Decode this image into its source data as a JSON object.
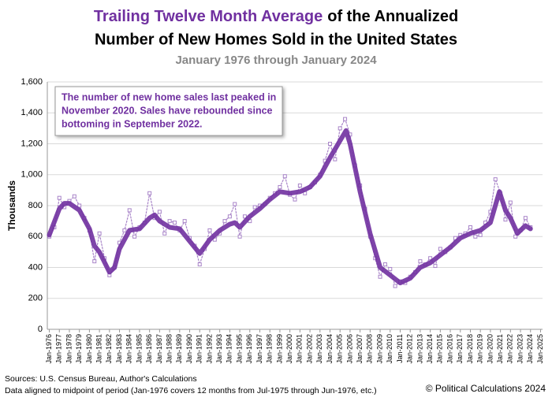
{
  "chart_data": {
    "type": "line",
    "title_highlight": "Trailing Twelve Month Average",
    "title_rest": "of the Annualized",
    "title_line2": "Number of New Homes Sold in the United States",
    "subtitle": "January 1976 through January 2024",
    "y_label": "Thousands",
    "annotation": [
      "The number of new home sales last peaked in",
      "November 2020. Sales have rebounded since",
      "bottoming in September 2022."
    ],
    "sources": [
      "Sources: U.S. Census Bureau, Author's Calculations",
      "Data aligned to midpoint of period (Jan-1976 covers 12 months from Jul-1975 through Jun-1976, etc.)"
    ],
    "copyright": "© Political Calculations 2024",
    "xlim": [
      1975.8,
      2025.2
    ],
    "ylim": [
      0,
      1600
    ],
    "yticks": [
      0,
      200,
      400,
      600,
      800,
      {
        "value": 1000,
        "label": "1,000"
      },
      {
        "value": 1200,
        "label": "1,200"
      },
      {
        "value": 1400,
        "label": "1,400"
      },
      {
        "value": 1600,
        "label": "1,600"
      }
    ],
    "xticks": [
      {
        "value": 1976,
        "label": "Jan-1976"
      },
      {
        "value": 1977,
        "label": "Jan-1977"
      },
      {
        "value": 1978,
        "label": "Jan-1978"
      },
      {
        "value": 1979,
        "label": "Jan-1979"
      },
      {
        "value": 1980,
        "label": "Jan-1980"
      },
      {
        "value": 1981,
        "label": "Jan-1981"
      },
      {
        "value": 1982,
        "label": "Jan-1982"
      },
      {
        "value": 1983,
        "label": "Jan-1983"
      },
      {
        "value": 1984,
        "label": "Jan-1984"
      },
      {
        "value": 1985,
        "label": "Jan-1985"
      },
      {
        "value": 1986,
        "label": "Jan-1986"
      },
      {
        "value": 1987,
        "label": "Jan-1987"
      },
      {
        "value": 1988,
        "label": "Jan-1988"
      },
      {
        "value": 1989,
        "label": "Jan-1989"
      },
      {
        "value": 1990,
        "label": "Jan-1990"
      },
      {
        "value": 1991,
        "label": "Jan-1991"
      },
      {
        "value": 1992,
        "label": "Jan-1992"
      },
      {
        "value": 1993,
        "label": "Jan-1993"
      },
      {
        "value": 1994,
        "label": "Jan-1994"
      },
      {
        "value": 1995,
        "label": "Jan-1995"
      },
      {
        "value": 1996,
        "label": "Jan-1996"
      },
      {
        "value": 1997,
        "label": "Jan-1997"
      },
      {
        "value": 1998,
        "label": "Jan-1998"
      },
      {
        "value": 1999,
        "label": "Jan-1999"
      },
      {
        "value": 2000,
        "label": "Jan-2000"
      },
      {
        "value": 2001,
        "label": "Jan-2001"
      },
      {
        "value": 2002,
        "label": "Jan-2002"
      },
      {
        "value": 2003,
        "label": "Jan-2003"
      },
      {
        "value": 2004,
        "label": "Jan-2004"
      },
      {
        "value": 2005,
        "label": "Jan-2005"
      },
      {
        "value": 2006,
        "label": "Jan-2006"
      },
      {
        "value": 2007,
        "label": "Jan-2007"
      },
      {
        "value": 2008,
        "label": "Jan-2008"
      },
      {
        "value": 2009,
        "label": "Jan-2009"
      },
      {
        "value": 2010,
        "label": "Jan-2010"
      },
      {
        "value": 2011,
        "label": "Jan-2011"
      },
      {
        "value": 2012,
        "label": "Jan-2012"
      },
      {
        "value": 2013,
        "label": "Jan-2013"
      },
      {
        "value": 2014,
        "label": "Jan-2014"
      },
      {
        "value": 2015,
        "label": "Jan-2015"
      },
      {
        "value": 2016,
        "label": "Jan-2016"
      },
      {
        "value": 2017,
        "label": "Jan-2017"
      },
      {
        "value": 2018,
        "label": "Jan-2018"
      },
      {
        "value": 2019,
        "label": "Jan-2019"
      },
      {
        "value": 2020,
        "label": "Jan-2020"
      },
      {
        "value": 2021,
        "label": "Jan-2021"
      },
      {
        "value": 2022,
        "label": "Jan-2022"
      },
      {
        "value": 2023,
        "label": "Jan-2023"
      },
      {
        "value": 2024,
        "label": "Jan-2024"
      },
      {
        "value": 2025,
        "label": "Jan-2025"
      }
    ],
    "grid": true,
    "series": [
      {
        "color": "#a884c8",
        "style": "dotted-markers",
        "x": [
          1976,
          1976.5,
          1977,
          1977.5,
          1978,
          1978.5,
          1979,
          1979.5,
          1980,
          1980.5,
          1981,
          1981.5,
          1982,
          1982.5,
          1983,
          1983.5,
          1984,
          1984.5,
          1985,
          1985.5,
          1986,
          1986.5,
          1987,
          1987.5,
          1988,
          1988.5,
          1989,
          1989.5,
          1990,
          1990.5,
          1991,
          1991.5,
          1992,
          1992.5,
          1993,
          1993.5,
          1994,
          1994.5,
          1995,
          1995.5,
          1996,
          1996.5,
          1997,
          1997.5,
          1998,
          1998.5,
          1999,
          1999.5,
          2000,
          2000.5,
          2001,
          2001.5,
          2002,
          2002.5,
          2003,
          2003.5,
          2004,
          2004.5,
          2005,
          2005.5,
          2006,
          2006.5,
          2007,
          2007.5,
          2008,
          2008.5,
          2009,
          2009.5,
          2010,
          2010.5,
          2011,
          2011.5,
          2012,
          2012.5,
          2013,
          2013.5,
          2014,
          2014.5,
          2015,
          2015.5,
          2016,
          2016.5,
          2017,
          2017.5,
          2018,
          2018.5,
          2019,
          2019.5,
          2020,
          2020.5,
          2021,
          2021.5,
          2022,
          2022.5,
          2023,
          2023.5,
          2024
        ],
        "values": [
          600,
          660,
          850,
          790,
          830,
          860,
          800,
          720,
          640,
          440,
          620,
          460,
          350,
          400,
          560,
          640,
          770,
          600,
          660,
          690,
          880,
          720,
          760,
          620,
          700,
          690,
          640,
          700,
          590,
          540,
          420,
          520,
          640,
          580,
          620,
          700,
          730,
          810,
          600,
          730,
          700,
          790,
          800,
          810,
          850,
          880,
          920,
          990,
          870,
          840,
          930,
          880,
          920,
          950,
          1000,
          1090,
          1200,
          1100,
          1300,
          1360,
          1260,
          1060,
          930,
          780,
          600,
          460,
          340,
          420,
          390,
          280,
          310,
          300,
          340,
          370,
          440,
          420,
          460,
          410,
          520,
          500,
          530,
          590,
          610,
          620,
          660,
          600,
          610,
          690,
          760,
          970,
          880,
          710,
          820,
          600,
          640,
          720,
          660
        ]
      },
      {
        "color": "#7030a0",
        "style": "thick",
        "x": [
          1976,
          1977,
          1977.5,
          1978,
          1979,
          1980,
          1980.5,
          1981,
          1982,
          1982.5,
          1983,
          1984,
          1985,
          1986,
          1986.5,
          1987,
          1988,
          1989,
          1990,
          1991,
          1992,
          1993,
          1994,
          1994.5,
          1995,
          1996,
          1997,
          1998,
          1999,
          2000,
          2001,
          2002,
          2003,
          2004,
          2005,
          2005.6,
          2006,
          2007,
          2008,
          2009,
          2010,
          2011,
          2012,
          2013,
          2014,
          2015,
          2016,
          2017,
          2018,
          2019,
          2020,
          2020.9,
          2021.5,
          2022,
          2022.7,
          2023,
          2023.5,
          2024
        ],
        "values": [
          610,
          780,
          815,
          815,
          770,
          650,
          540,
          500,
          370,
          400,
          520,
          640,
          650,
          720,
          740,
          700,
          660,
          650,
          570,
          490,
          580,
          640,
          680,
          690,
          660,
          730,
          780,
          840,
          890,
          880,
          890,
          920,
          990,
          1110,
          1220,
          1285,
          1200,
          890,
          620,
          400,
          350,
          300,
          330,
          400,
          430,
          480,
          530,
          590,
          620,
          640,
          690,
          890,
          770,
          720,
          620,
          640,
          670,
          650
        ]
      }
    ]
  }
}
